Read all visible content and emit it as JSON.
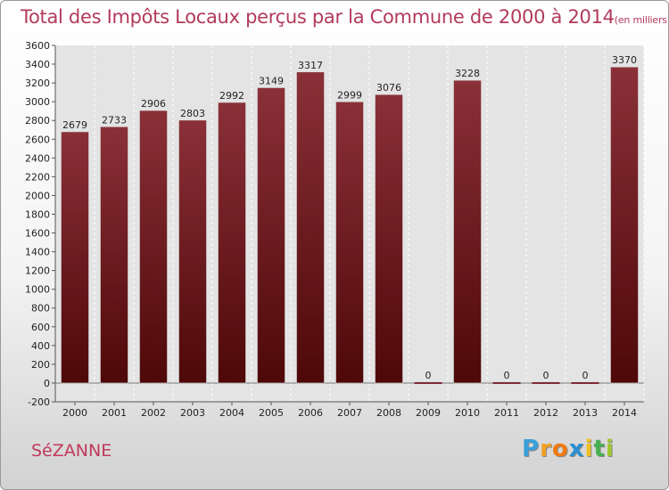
{
  "chart_data": {
    "type": "bar",
    "title": "Total des Impôts Locaux perçus par la Commune de 2000 à 2014",
    "unit_note": "(en milliers d'€)",
    "xlabel": "",
    "ylabel": "",
    "categories": [
      "2000",
      "2001",
      "2002",
      "2003",
      "2004",
      "2005",
      "2006",
      "2007",
      "2008",
      "2009",
      "2010",
      "2011",
      "2012",
      "2013",
      "2014"
    ],
    "values": [
      2679,
      2733,
      2906,
      2803,
      2992,
      3149,
      3317,
      2999,
      3076,
      0,
      3228,
      0,
      0,
      0,
      3370
    ],
    "value_labels": [
      "2679",
      "2733",
      "2906",
      "2803",
      "2992",
      "3149",
      "3317",
      "2999",
      "3076",
      "0",
      "3228",
      "0",
      "0",
      "0",
      "3370"
    ],
    "ylim": [
      -200,
      3600
    ],
    "yticks": [
      "-200",
      "0",
      "200",
      "400",
      "600",
      "800",
      "1000",
      "1200",
      "1400",
      "1600",
      "1800",
      "2000",
      "2200",
      "2400",
      "2600",
      "2800",
      "3000",
      "3200",
      "3400",
      "3600"
    ],
    "grid": "vertical dashed",
    "bar_color": "#7a2430"
  },
  "commune": "SéZANNE",
  "logo": {
    "letters": [
      "P",
      "r",
      "o",
      "x",
      "i",
      "t",
      "i"
    ],
    "colors": [
      "#3aa0d8",
      "#f0a020",
      "#f07a10",
      "#2a8fd0",
      "#f0c020",
      "#46b050",
      "#a0c830"
    ]
  }
}
